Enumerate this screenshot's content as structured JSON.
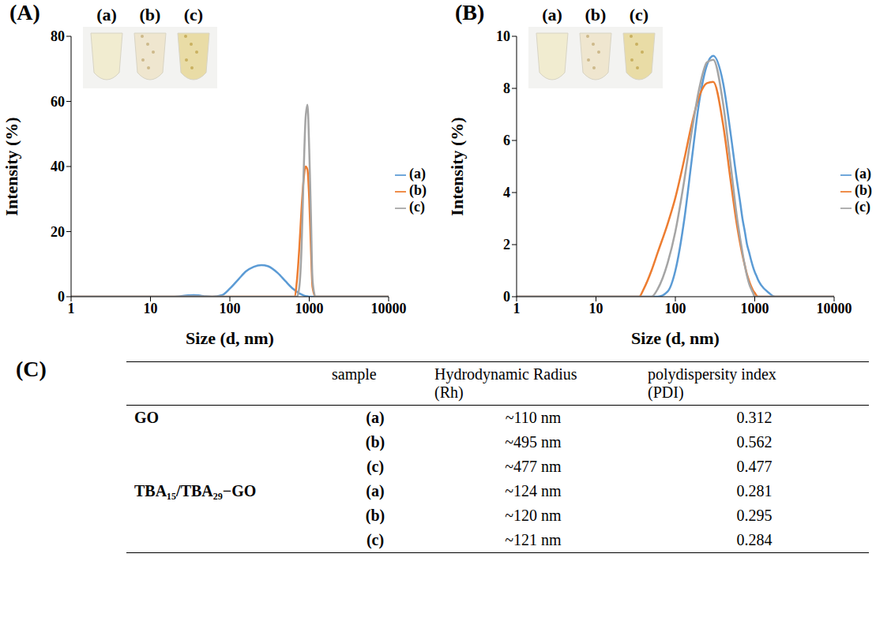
{
  "chart_data": [
    {
      "type": "line",
      "title": "(A)",
      "annotations": [
        "(a)",
        "(b)",
        "(c)"
      ],
      "xlabel": "Size (d, nm)",
      "ylabel": "Intensity (%)",
      "log": "x",
      "grid": false,
      "legend": "right",
      "xlim": [
        1,
        10000
      ],
      "xticks": [
        1,
        10,
        100,
        1000,
        10000
      ],
      "ylim": [
        0,
        80
      ],
      "yticks": [
        0,
        20,
        40,
        60,
        80
      ],
      "x": [
        1,
        20,
        30,
        35,
        40,
        50,
        60,
        80,
        100,
        130,
        160,
        200,
        250,
        300,
        400,
        500,
        600,
        650,
        700,
        750,
        800,
        850,
        900,
        950,
        1000,
        1050,
        1100,
        1200,
        1500,
        1800,
        2000,
        10000
      ],
      "series": [
        {
          "name": "(a)",
          "color": "#5b9bd5",
          "values": [
            0,
            0,
            0.4,
            0.5,
            0.4,
            0.1,
            0,
            0.5,
            2.5,
            5.5,
            7.8,
            9.2,
            9.7,
            9.4,
            7.3,
            4.8,
            2.8,
            2.1,
            1.5,
            1.0,
            0.7,
            0.4,
            0.2,
            0.1,
            0,
            0,
            0,
            0,
            0,
            0,
            0,
            0
          ]
        },
        {
          "name": "(b)",
          "color": "#ed7d31",
          "values": [
            0,
            0,
            0,
            0,
            0,
            0,
            0,
            0,
            0,
            0,
            0,
            0,
            0,
            0,
            0,
            0,
            0,
            0,
            5,
            15,
            27,
            36,
            40,
            39,
            30,
            15,
            3,
            0,
            0,
            0,
            0,
            0
          ]
        },
        {
          "name": "(c)",
          "color": "#a5a5a5",
          "values": [
            0,
            0,
            0,
            0,
            0,
            0,
            0,
            0,
            0,
            0,
            0,
            0,
            0,
            0,
            0,
            0,
            0,
            0,
            0,
            3,
            15,
            38,
            55,
            59,
            45,
            25,
            5,
            0,
            0,
            0,
            0,
            0
          ]
        }
      ]
    },
    {
      "type": "line",
      "title": "(B)",
      "annotations": [
        "(a)",
        "(b)",
        "(c)"
      ],
      "xlabel": "Size (d, nm)",
      "ylabel": "Intensity (%)",
      "log": "x",
      "grid": false,
      "legend": "right",
      "xlim": [
        1,
        10000
      ],
      "xticks": [
        1,
        10,
        100,
        1000,
        10000
      ],
      "ylim": [
        0,
        10
      ],
      "yticks": [
        0,
        2,
        4,
        6,
        8,
        10
      ],
      "x": [
        1,
        20,
        30,
        35,
        40,
        50,
        60,
        80,
        100,
        130,
        160,
        200,
        250,
        300,
        400,
        500,
        600,
        650,
        700,
        750,
        800,
        850,
        900,
        950,
        1000,
        1050,
        1100,
        1200,
        1500,
        1800,
        2000,
        10000
      ],
      "series": [
        {
          "name": "(a)",
          "color": "#5b9bd5",
          "values": [
            0,
            0,
            0,
            0,
            0,
            0,
            0,
            0.2,
            1.0,
            3.0,
            5.2,
            7.5,
            8.9,
            9.25,
            8.2,
            6.2,
            4.4,
            3.7,
            3.0,
            2.5,
            2.0,
            1.7,
            1.4,
            1.15,
            0.95,
            0.8,
            0.65,
            0.45,
            0.15,
            0,
            0,
            0
          ]
        },
        {
          "name": "(b)",
          "color": "#ed7d31",
          "values": [
            0,
            0,
            0,
            0,
            0.3,
            1.0,
            1.7,
            2.8,
            3.8,
            5.3,
            6.6,
            7.7,
            8.2,
            8.25,
            6.6,
            4.4,
            2.7,
            2.1,
            1.6,
            1.2,
            0.85,
            0.6,
            0.4,
            0.25,
            0.15,
            0.05,
            0,
            0,
            0,
            0,
            0,
            0
          ]
        },
        {
          "name": "(c)",
          "color": "#a5a5a5",
          "values": [
            0,
            0,
            0,
            0,
            0,
            0,
            0.3,
            1.3,
            2.5,
            4.5,
            6.3,
            8.0,
            9.0,
            9.1,
            7.4,
            5.0,
            3.0,
            2.3,
            1.7,
            1.2,
            0.8,
            0.5,
            0.3,
            0.15,
            0,
            0,
            0,
            0,
            0,
            0,
            0,
            0
          ]
        }
      ]
    }
  ],
  "table": {
    "title": "(C)",
    "header": [
      "sample",
      "Hydrodynamic Radius (Rh)",
      "polydispersity index (PDI)"
    ],
    "groups": [
      {
        "name": "GO",
        "rows": [
          [
            "(a)",
            "~110 nm",
            "0.312"
          ],
          [
            "(b)",
            "~495 nm",
            "0.562"
          ],
          [
            "(c)",
            "~477 nm",
            "0.477"
          ]
        ]
      },
      {
        "name": "TBA₁₅/TBA₂₉−GO",
        "rows": [
          [
            "(a)",
            "~124 nm",
            "0.281"
          ],
          [
            "(b)",
            "~120 nm",
            "0.295"
          ],
          [
            "(c)",
            "~121 nm",
            "0.284"
          ]
        ]
      }
    ]
  }
}
